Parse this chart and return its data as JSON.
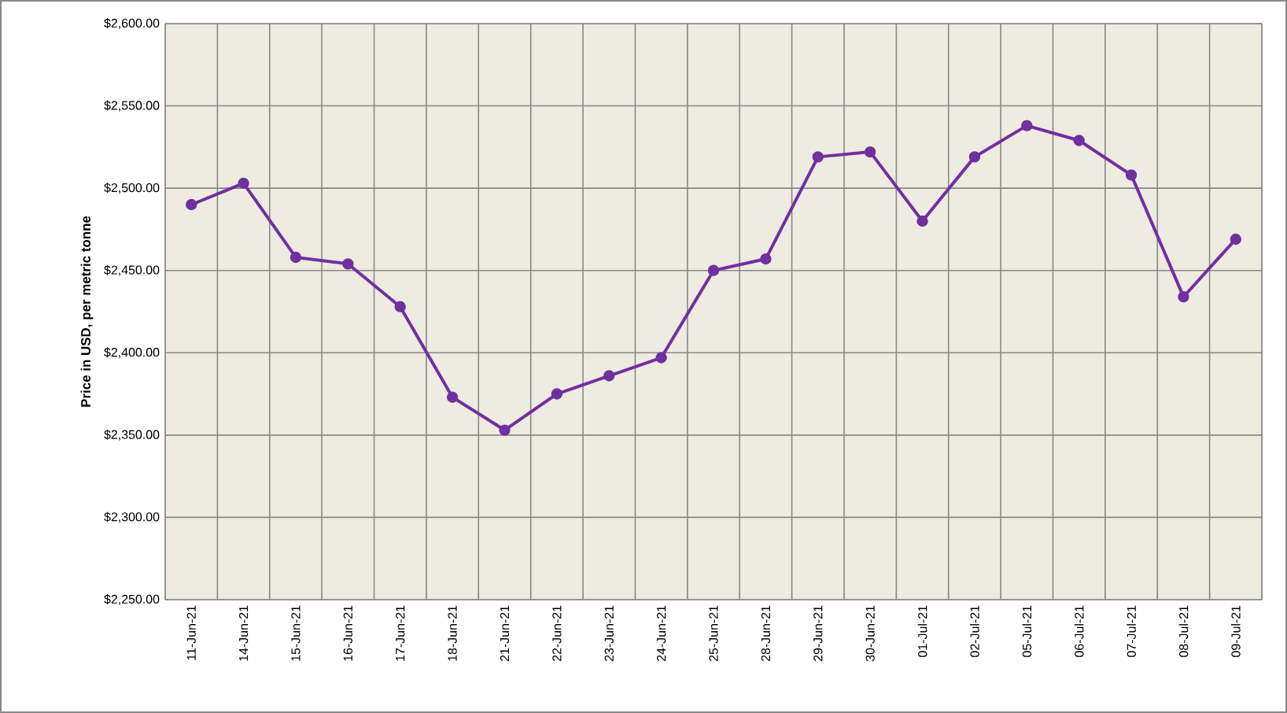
{
  "chart_data": {
    "type": "line",
    "ylabel": "Price in USD, per metric tonne",
    "categories": [
      "11-Jun-21",
      "14-Jun-21",
      "15-Jun-21",
      "16-Jun-21",
      "17-Jun-21",
      "18-Jun-21",
      "21-Jun-21",
      "22-Jun-21",
      "23-Jun-21",
      "24-Jun-21",
      "25-Jun-21",
      "28-Jun-21",
      "29-Jun-21",
      "30-Jun-21",
      "01-Jul-21",
      "02-Jul-21",
      "05-Jul-21",
      "06-Jul-21",
      "07-Jul-21",
      "08-Jul-21",
      "09-Jul-21"
    ],
    "series": [
      {
        "color": "#7030a0",
        "values": [
          2490,
          2503,
          2458,
          2454,
          2428,
          2373,
          2353,
          2375,
          2386,
          2397,
          2450,
          2457,
          2519,
          2522,
          2480,
          2519,
          2538,
          2529,
          2508,
          2434,
          2469
        ]
      }
    ],
    "ylim": [
      2250,
      2600
    ],
    "yticks": [
      {
        "value": 2250,
        "label": "$2,250.00"
      },
      {
        "value": 2300,
        "label": "$2,300.00"
      },
      {
        "value": 2350,
        "label": "$2,350.00"
      },
      {
        "value": 2400,
        "label": "$2,400.00"
      },
      {
        "value": 2450,
        "label": "$2,450.00"
      },
      {
        "value": 2500,
        "label": "$2,500.00"
      },
      {
        "value": 2550,
        "label": "$2,550.00"
      },
      {
        "value": 2600,
        "label": "$2,600.00"
      }
    ],
    "grid": true,
    "marker": "circle",
    "line_style": "solid"
  }
}
